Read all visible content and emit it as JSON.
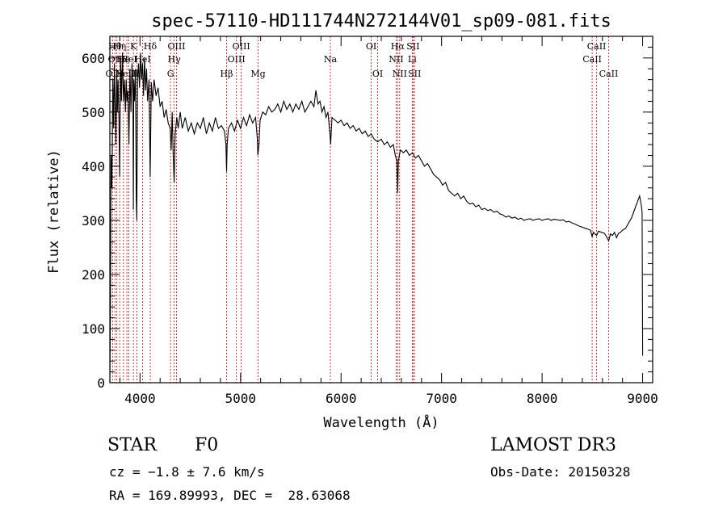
{
  "chart_data": {
    "type": "line",
    "title": "spec-57110-HD111744N272144V01_sp09-081.fits",
    "xlabel": "Wavelength (Å)",
    "ylabel": "Flux (relative)",
    "xlim": [
      3700,
      9100
    ],
    "ylim": [
      0,
      640
    ],
    "xticks": [
      4000,
      5000,
      6000,
      7000,
      8000,
      9000
    ],
    "yticks": [
      0,
      100,
      200,
      300,
      400,
      500,
      600
    ],
    "grid": false,
    "line_color": "#000000",
    "marker_color": "#cc0000",
    "series": [
      {
        "name": "flux",
        "points": [
          [
            3700,
            0
          ],
          [
            3705,
            120
          ],
          [
            3712,
            420
          ],
          [
            3720,
            360
          ],
          [
            3730,
            560
          ],
          [
            3738,
            470
          ],
          [
            3745,
            590
          ],
          [
            3752,
            520
          ],
          [
            3760,
            440
          ],
          [
            3768,
            580
          ],
          [
            3775,
            500
          ],
          [
            3782,
            560
          ],
          [
            3790,
            490
          ],
          [
            3798,
            380
          ],
          [
            3806,
            600
          ],
          [
            3815,
            520
          ],
          [
            3825,
            610
          ],
          [
            3835,
            520
          ],
          [
            3845,
            560
          ],
          [
            3855,
            500
          ],
          [
            3862,
            560
          ],
          [
            3870,
            520
          ],
          [
            3880,
            540
          ],
          [
            3890,
            440
          ],
          [
            3900,
            580
          ],
          [
            3910,
            500
          ],
          [
            3920,
            590
          ],
          [
            3930,
            530
          ],
          [
            3934,
            320
          ],
          [
            3938,
            560
          ],
          [
            3945,
            520
          ],
          [
            3955,
            580
          ],
          [
            3963,
            340
          ],
          [
            3968,
            300
          ],
          [
            3975,
            560
          ],
          [
            3985,
            590
          ],
          [
            3995,
            545
          ],
          [
            4005,
            610
          ],
          [
            4015,
            560
          ],
          [
            4025,
            590
          ],
          [
            4035,
            530
          ],
          [
            4045,
            600
          ],
          [
            4055,
            540
          ],
          [
            4065,
            580
          ],
          [
            4075,
            520
          ],
          [
            4090,
            560
          ],
          [
            4101,
            380
          ],
          [
            4112,
            555
          ],
          [
            4125,
            520
          ],
          [
            4140,
            560
          ],
          [
            4160,
            530
          ],
          [
            4180,
            545
          ],
          [
            4200,
            510
          ],
          [
            4220,
            520
          ],
          [
            4240,
            490
          ],
          [
            4260,
            505
          ],
          [
            4280,
            480
          ],
          [
            4300,
            470
          ],
          [
            4310,
            430
          ],
          [
            4320,
            500
          ],
          [
            4330,
            420
          ],
          [
            4340,
            370
          ],
          [
            4350,
            460
          ],
          [
            4365,
            490
          ],
          [
            4380,
            470
          ],
          [
            4400,
            500
          ],
          [
            4420,
            470
          ],
          [
            4450,
            490
          ],
          [
            4480,
            465
          ],
          [
            4510,
            480
          ],
          [
            4540,
            460
          ],
          [
            4570,
            480
          ],
          [
            4600,
            470
          ],
          [
            4630,
            490
          ],
          [
            4660,
            460
          ],
          [
            4690,
            480
          ],
          [
            4720,
            465
          ],
          [
            4750,
            490
          ],
          [
            4780,
            470
          ],
          [
            4810,
            475
          ],
          [
            4840,
            465
          ],
          [
            4855,
            440
          ],
          [
            4861,
            390
          ],
          [
            4867,
            440
          ],
          [
            4880,
            470
          ],
          [
            4910,
            480
          ],
          [
            4940,
            465
          ],
          [
            4970,
            485
          ],
          [
            5000,
            470
          ],
          [
            5030,
            490
          ],
          [
            5060,
            475
          ],
          [
            5090,
            495
          ],
          [
            5120,
            480
          ],
          [
            5150,
            490
          ],
          [
            5167,
            450
          ],
          [
            5172,
            420
          ],
          [
            5183,
            440
          ],
          [
            5195,
            485
          ],
          [
            5220,
            500
          ],
          [
            5250,
            495
          ],
          [
            5280,
            510
          ],
          [
            5310,
            500
          ],
          [
            5340,
            505
          ],
          [
            5370,
            515
          ],
          [
            5400,
            500
          ],
          [
            5430,
            520
          ],
          [
            5460,
            505
          ],
          [
            5490,
            515
          ],
          [
            5520,
            500
          ],
          [
            5550,
            515
          ],
          [
            5580,
            505
          ],
          [
            5610,
            520
          ],
          [
            5640,
            500
          ],
          [
            5670,
            510
          ],
          [
            5700,
            520
          ],
          [
            5730,
            510
          ],
          [
            5750,
            540
          ],
          [
            5770,
            515
          ],
          [
            5790,
            520
          ],
          [
            5810,
            500
          ],
          [
            5830,
            510
          ],
          [
            5850,
            490
          ],
          [
            5870,
            500
          ],
          [
            5889,
            460
          ],
          [
            5896,
            440
          ],
          [
            5910,
            490
          ],
          [
            5940,
            485
          ],
          [
            5970,
            480
          ],
          [
            6000,
            485
          ],
          [
            6030,
            475
          ],
          [
            6060,
            480
          ],
          [
            6090,
            470
          ],
          [
            6120,
            475
          ],
          [
            6150,
            465
          ],
          [
            6180,
            470
          ],
          [
            6210,
            460
          ],
          [
            6240,
            465
          ],
          [
            6270,
            455
          ],
          [
            6300,
            460
          ],
          [
            6330,
            450
          ],
          [
            6363,
            445
          ],
          [
            6400,
            450
          ],
          [
            6430,
            440
          ],
          [
            6460,
            445
          ],
          [
            6490,
            435
          ],
          [
            6520,
            440
          ],
          [
            6540,
            420
          ],
          [
            6555,
            410
          ],
          [
            6563,
            350
          ],
          [
            6570,
            410
          ],
          [
            6590,
            430
          ],
          [
            6620,
            425
          ],
          [
            6650,
            430
          ],
          [
            6680,
            420
          ],
          [
            6710,
            425
          ],
          [
            6740,
            415
          ],
          [
            6770,
            420
          ],
          [
            6800,
            410
          ],
          [
            6830,
            400
          ],
          [
            6860,
            405
          ],
          [
            6890,
            395
          ],
          [
            6920,
            385
          ],
          [
            6950,
            380
          ],
          [
            6980,
            375
          ],
          [
            7010,
            365
          ],
          [
            7040,
            370
          ],
          [
            7070,
            355
          ],
          [
            7100,
            350
          ],
          [
            7130,
            345
          ],
          [
            7160,
            350
          ],
          [
            7190,
            340
          ],
          [
            7220,
            345
          ],
          [
            7250,
            335
          ],
          [
            7280,
            330
          ],
          [
            7310,
            332
          ],
          [
            7340,
            325
          ],
          [
            7370,
            328
          ],
          [
            7400,
            320
          ],
          [
            7430,
            322
          ],
          [
            7460,
            318
          ],
          [
            7490,
            320
          ],
          [
            7520,
            315
          ],
          [
            7550,
            317
          ],
          [
            7580,
            312
          ],
          [
            7610,
            310
          ],
          [
            7640,
            306
          ],
          [
            7670,
            308
          ],
          [
            7700,
            304
          ],
          [
            7730,
            306
          ],
          [
            7760,
            302
          ],
          [
            7790,
            304
          ],
          [
            7820,
            300
          ],
          [
            7850,
            302
          ],
          [
            7880,
            303
          ],
          [
            7910,
            300
          ],
          [
            7940,
            302
          ],
          [
            7970,
            303
          ],
          [
            8000,
            300
          ],
          [
            8030,
            302
          ],
          [
            8060,
            303
          ],
          [
            8090,
            300
          ],
          [
            8120,
            302
          ],
          [
            8150,
            301
          ],
          [
            8180,
            300
          ],
          [
            8210,
            301
          ],
          [
            8240,
            297
          ],
          [
            8270,
            298
          ],
          [
            8300,
            295
          ],
          [
            8330,
            293
          ],
          [
            8360,
            290
          ],
          [
            8390,
            288
          ],
          [
            8420,
            286
          ],
          [
            8450,
            284
          ],
          [
            8480,
            282
          ],
          [
            8498,
            270
          ],
          [
            8510,
            278
          ],
          [
            8542,
            272
          ],
          [
            8560,
            280
          ],
          [
            8590,
            278
          ],
          [
            8620,
            276
          ],
          [
            8640,
            270
          ],
          [
            8662,
            262
          ],
          [
            8680,
            275
          ],
          [
            8700,
            272
          ],
          [
            8720,
            278
          ],
          [
            8740,
            268
          ],
          [
            8760,
            276
          ],
          [
            8780,
            278
          ],
          [
            8800,
            282
          ],
          [
            8830,
            285
          ],
          [
            8860,
            295
          ],
          [
            8890,
            305
          ],
          [
            8920,
            320
          ],
          [
            8950,
            335
          ],
          [
            8970,
            345
          ],
          [
            8985,
            330
          ],
          [
            8995,
            315
          ],
          [
            9000,
            50
          ]
        ]
      }
    ],
    "lines": [
      {
        "wavelength": 3727,
        "label": "OII",
        "row": 3
      },
      {
        "wavelength": 3750,
        "label": "Hθ",
        "row": 1
      },
      {
        "wavelength": 3770,
        "label": "OIII",
        "row": 2
      },
      {
        "wavelength": 3798,
        "label": "Hη",
        "row": 1
      },
      {
        "wavelength": 3835,
        "label": "He",
        "row": 2
      },
      {
        "wavelength": 3869,
        "label": "NeIII",
        "row": 3
      },
      {
        "wavelength": 3889,
        "label": "HeI",
        "row": 2
      },
      {
        "wavelength": 3934,
        "label": "K",
        "row": 1
      },
      {
        "wavelength": 3968,
        "label": "H",
        "row": 3
      },
      {
        "wavelength": 4026,
        "label": "HeI",
        "row": 2
      },
      {
        "wavelength": 4102,
        "label": "Hδ",
        "row": 1
      },
      {
        "wavelength": 4304,
        "label": "G",
        "row": 3
      },
      {
        "wavelength": 4340,
        "label": "Hγ",
        "row": 2
      },
      {
        "wavelength": 4363,
        "label": "OIII",
        "row": 1
      },
      {
        "wavelength": 4861,
        "label": "Hβ",
        "row": 3
      },
      {
        "wavelength": 4959,
        "label": "OIII",
        "row": 2
      },
      {
        "wavelength": 5007,
        "label": "OIII",
        "row": 1
      },
      {
        "wavelength": 5175,
        "label": "Mg",
        "row": 3
      },
      {
        "wavelength": 5893,
        "label": "Na",
        "row": 2
      },
      {
        "wavelength": 6300,
        "label": "OI",
        "row": 1
      },
      {
        "wavelength": 6364,
        "label": "OI",
        "row": 3
      },
      {
        "wavelength": 6548,
        "label": "NII",
        "row": 2
      },
      {
        "wavelength": 6563,
        "label": "Hα",
        "row": 1
      },
      {
        "wavelength": 6583,
        "label": "NII",
        "row": 3
      },
      {
        "wavelength": 6708,
        "label": "Li",
        "row": 2
      },
      {
        "wavelength": 6716,
        "label": "SII",
        "row": 1
      },
      {
        "wavelength": 6731,
        "label": "SII",
        "row": 3
      },
      {
        "wavelength": 8498,
        "label": "CaII",
        "row": 2
      },
      {
        "wavelength": 8542,
        "label": "CaII",
        "row": 1
      },
      {
        "wavelength": 8662,
        "label": "CaII",
        "row": 3
      }
    ]
  },
  "info": {
    "object_class": "STAR",
    "subclass": "F0",
    "cz": "cz = −1.8 ± 7.6 km/s",
    "coords": "RA = 169.89993, DEC =  28.63068",
    "survey": "LAMOST DR3",
    "obs_date": "Obs-Date: 20150328"
  }
}
